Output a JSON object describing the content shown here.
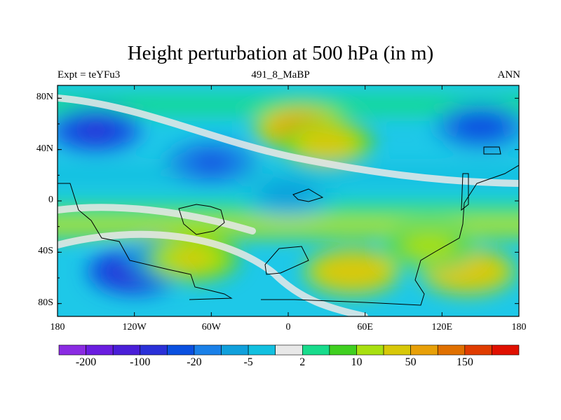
{
  "chart_data": {
    "type": "heatmap",
    "title": "Height perturbation at 500 hPa (in m)",
    "subtitle_left": "Expt = teYFu3",
    "subtitle_center": "491_8_MaBP",
    "subtitle_right": "ANN",
    "x_ticks": [
      "180",
      "120W",
      "60W",
      "0",
      "60E",
      "120E",
      "180"
    ],
    "x_range": [
      -180,
      180
    ],
    "y_ticks": [
      "80N",
      "40N",
      "0",
      "40S",
      "80S"
    ],
    "y_tick_values": [
      80,
      40,
      0,
      -40,
      -80
    ],
    "y_range": [
      -90,
      90
    ],
    "colorbar": {
      "labels": [
        "-200",
        "-100",
        "-20",
        "-5",
        "2",
        "10",
        "50",
        "150"
      ],
      "colors": [
        "#8a2be2",
        "#6a1de0",
        "#4a1ed8",
        "#2a30d8",
        "#0a50e0",
        "#1a80e8",
        "#10a0dc",
        "#12c0e0",
        "#e8e8e8",
        "#18dc8c",
        "#40d020",
        "#a8e010",
        "#d8c808",
        "#e8a008",
        "#e07000",
        "#e03c00",
        "#e01000"
      ]
    },
    "field_centers": [
      {
        "lon": -150,
        "lat": 55,
        "value": -60
      },
      {
        "lon": -60,
        "lat": 30,
        "value": -25
      },
      {
        "lon": 150,
        "lat": 58,
        "value": -40
      },
      {
        "lon": 10,
        "lat": 57,
        "value": 70
      },
      {
        "lon": 30,
        "lat": 45,
        "value": 30
      },
      {
        "lon": -120,
        "lat": -55,
        "value": -90
      },
      {
        "lon": -90,
        "lat": -45,
        "value": -30
      },
      {
        "lon": -75,
        "lat": -45,
        "value": 20
      },
      {
        "lon": 50,
        "lat": -55,
        "value": 40
      },
      {
        "lon": 140,
        "lat": -55,
        "value": 40
      },
      {
        "lon": 0,
        "lat": 5,
        "value": -8
      },
      {
        "lon": 110,
        "lat": -35,
        "value": 15
      }
    ]
  }
}
